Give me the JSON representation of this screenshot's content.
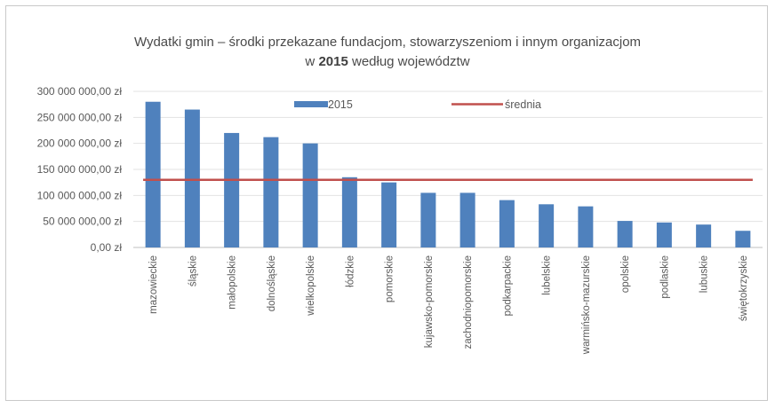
{
  "chart_data": {
    "type": "bar",
    "title_line1": "Wydatki gmin – środki przekazane fundacjom, stowarzyszeniom i innym organizacjom",
    "title_line2_prefix": "w",
    "title_line2_year": "2015",
    "title_line2_suffix": "według województw",
    "categories": [
      "mazowieckie",
      "śląskie",
      "małopolskie",
      "dolnośląskie",
      "wielkopolskie",
      "łódzkie",
      "pomorskie",
      "kujawsko-pomorskie",
      "zachodniopomorskie",
      "podkarpackie",
      "lubelskie",
      "warmińsko-mazurskie",
      "opolskie",
      "podlaskie",
      "lubuskie",
      "świętokrzyskie"
    ],
    "series": [
      {
        "name": "2015",
        "type": "bar",
        "color": "#4f81bd",
        "values": [
          280000000,
          265000000,
          220000000,
          212000000,
          200000000,
          135000000,
          125000000,
          105000000,
          105000000,
          91000000,
          83000000,
          79000000,
          51000000,
          48000000,
          44000000,
          32000000
        ]
      },
      {
        "name": "średnia",
        "type": "line",
        "color": "#c0504d",
        "value": 130000000
      }
    ],
    "yticks": [
      "0,00 zł",
      "50 000 000,00 zł",
      "100 000 000,00 zł",
      "150 000 000,00 zł",
      "200 000 000,00 zł",
      "250 000 000,00 zł",
      "300 000 000,00 zł"
    ],
    "ylim": [
      0,
      300000000
    ],
    "grid": true,
    "legend_position": "top"
  }
}
